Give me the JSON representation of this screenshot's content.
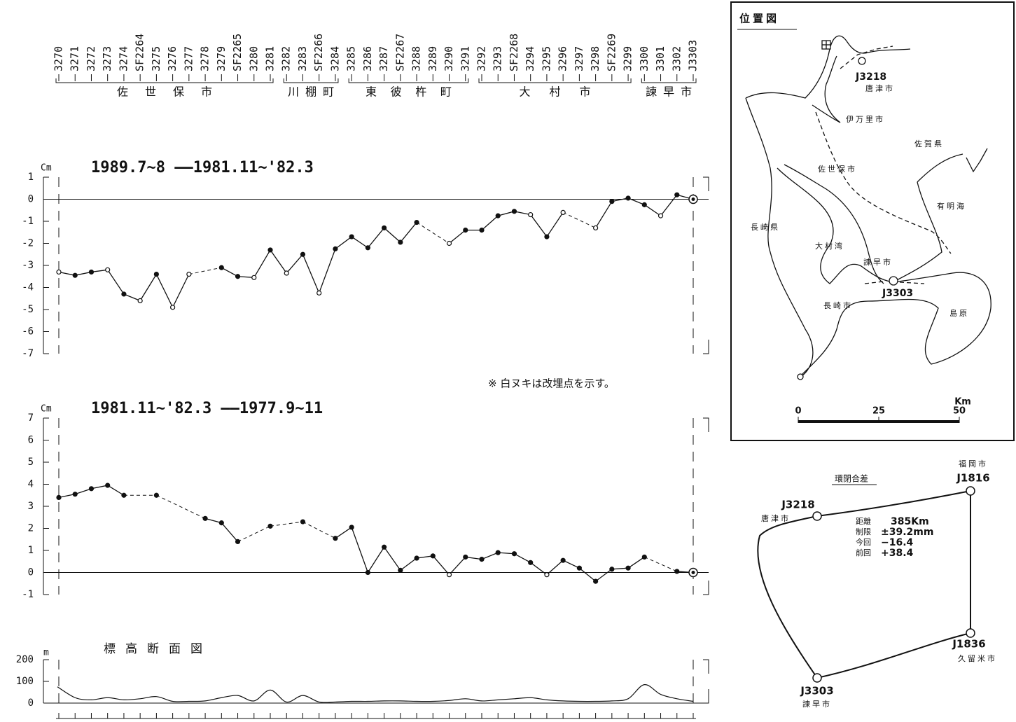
{
  "station_groups": [
    {
      "name": "佐世保市",
      "stations": [
        "3270",
        "3271",
        "3272",
        "3273",
        "3274",
        "SF2264",
        "3275",
        "3276",
        "3277",
        "3278",
        "3279",
        "SF2265",
        "3280",
        "3281"
      ]
    },
    {
      "name": "川棚町",
      "stations": [
        "3282",
        "3283",
        "SF2266",
        "3284"
      ]
    },
    {
      "name": "東彼杵町",
      "stations": [
        "3285",
        "3286",
        "3287",
        "SF2267",
        "3288",
        "3289",
        "3290",
        "3291"
      ]
    },
    {
      "name": "大村市",
      "stations": [
        "3292",
        "3293",
        "SF2268",
        "3294",
        "3295",
        "3296",
        "3297",
        "3298",
        "SF2269",
        "3299"
      ]
    },
    {
      "name": "諫早市",
      "stations": [
        "3300",
        "3301",
        "3302",
        "J3303"
      ]
    }
  ],
  "chart_data": [
    {
      "type": "line",
      "title": "1989.7~8 ——1981.11~'82.3",
      "y_label": "Cm",
      "annotation": "※  白ヌキは改埋点を示す。",
      "ylim": [
        -7,
        1
      ],
      "yticks": [
        -7,
        -6,
        -5,
        -4,
        -3,
        -2,
        -1,
        0,
        1
      ],
      "color": "#111111",
      "values": [
        -3.3,
        -3.45,
        -3.3,
        -3.2,
        -4.3,
        -4.6,
        -3.4,
        -4.9,
        -3.4,
        null,
        -3.1,
        -3.5,
        -3.55,
        -2.3,
        -3.35,
        -2.5,
        -4.25,
        -2.25,
        -1.7,
        -2.2,
        -1.3,
        -1.95,
        -1.05,
        null,
        -2.0,
        -1.4,
        -1.4,
        -0.75,
        -0.55,
        -0.7,
        -1.7,
        -0.6,
        null,
        -1.3,
        -0.1,
        0.05,
        -0.25,
        -0.75,
        0.2,
        0
      ],
      "hollow": [
        true,
        false,
        false,
        true,
        false,
        true,
        false,
        true,
        true,
        false,
        false,
        false,
        true,
        false,
        true,
        false,
        true,
        false,
        false,
        false,
        false,
        false,
        false,
        false,
        true,
        false,
        false,
        false,
        false,
        true,
        false,
        true,
        false,
        true,
        false,
        false,
        false,
        true,
        false,
        false
      ]
    },
    {
      "type": "line",
      "title": "1981.11~'82.3 ——1977.9~11",
      "y_label": "Cm",
      "ylim": [
        -1,
        7
      ],
      "yticks": [
        -1,
        0,
        1,
        2,
        3,
        4,
        5,
        6,
        7
      ],
      "color": "#111111",
      "values": [
        3.4,
        3.55,
        3.8,
        3.95,
        3.5,
        null,
        3.5,
        null,
        null,
        2.45,
        2.25,
        1.4,
        null,
        2.1,
        null,
        2.3,
        null,
        1.55,
        2.05,
        0.0,
        1.15,
        0.1,
        0.65,
        0.75,
        -0.1,
        0.7,
        0.6,
        0.9,
        0.85,
        0.45,
        -0.1,
        0.55,
        0.2,
        -0.4,
        0.15,
        0.2,
        0.7,
        null,
        0.05,
        0
      ],
      "hollow": [
        false,
        false,
        false,
        false,
        false,
        false,
        false,
        false,
        false,
        false,
        false,
        false,
        false,
        false,
        false,
        false,
        false,
        false,
        false,
        false,
        false,
        false,
        false,
        false,
        true,
        false,
        false,
        false,
        false,
        false,
        true,
        false,
        false,
        false,
        false,
        false,
        false,
        false,
        false,
        false
      ]
    },
    {
      "type": "area",
      "title": "標高断面図",
      "y_label": "m",
      "ylim": [
        0,
        200
      ],
      "yticks": [
        0,
        100,
        200
      ],
      "color": "#111111",
      "values": [
        75,
        25,
        15,
        25,
        15,
        20,
        30,
        8,
        8,
        10,
        25,
        35,
        10,
        60,
        5,
        35,
        5,
        5,
        8,
        8,
        10,
        10,
        8,
        8,
        12,
        20,
        10,
        15,
        20,
        25,
        15,
        10,
        8,
        8,
        10,
        20,
        85,
        40,
        20,
        8
      ]
    }
  ],
  "location_map": {
    "title": "位置図",
    "labels": [
      "J3218",
      "唐津市",
      "伊万里市",
      "佐賀県",
      "佐世保市",
      "有明海",
      "長崎県",
      "大村湾",
      "諫早市",
      "J3303",
      "島原",
      "長崎市"
    ],
    "scale": {
      "ticks": [
        0,
        25,
        50
      ],
      "unit": "Km"
    }
  },
  "loop": {
    "title": "環閉合差",
    "nodes": [
      {
        "city": "福岡市",
        "id": "J1816"
      },
      {
        "city": "唐津市",
        "id": "J3218"
      },
      {
        "city": "久留米市",
        "id": "J1836"
      },
      {
        "city": "諫早市",
        "id": "J3303"
      }
    ],
    "rows": [
      [
        "距離",
        "385Km"
      ],
      [
        "制限",
        "±39.2mm"
      ],
      [
        "今回",
        "−16.4"
      ],
      [
        "前回",
        "+38.4"
      ]
    ]
  }
}
